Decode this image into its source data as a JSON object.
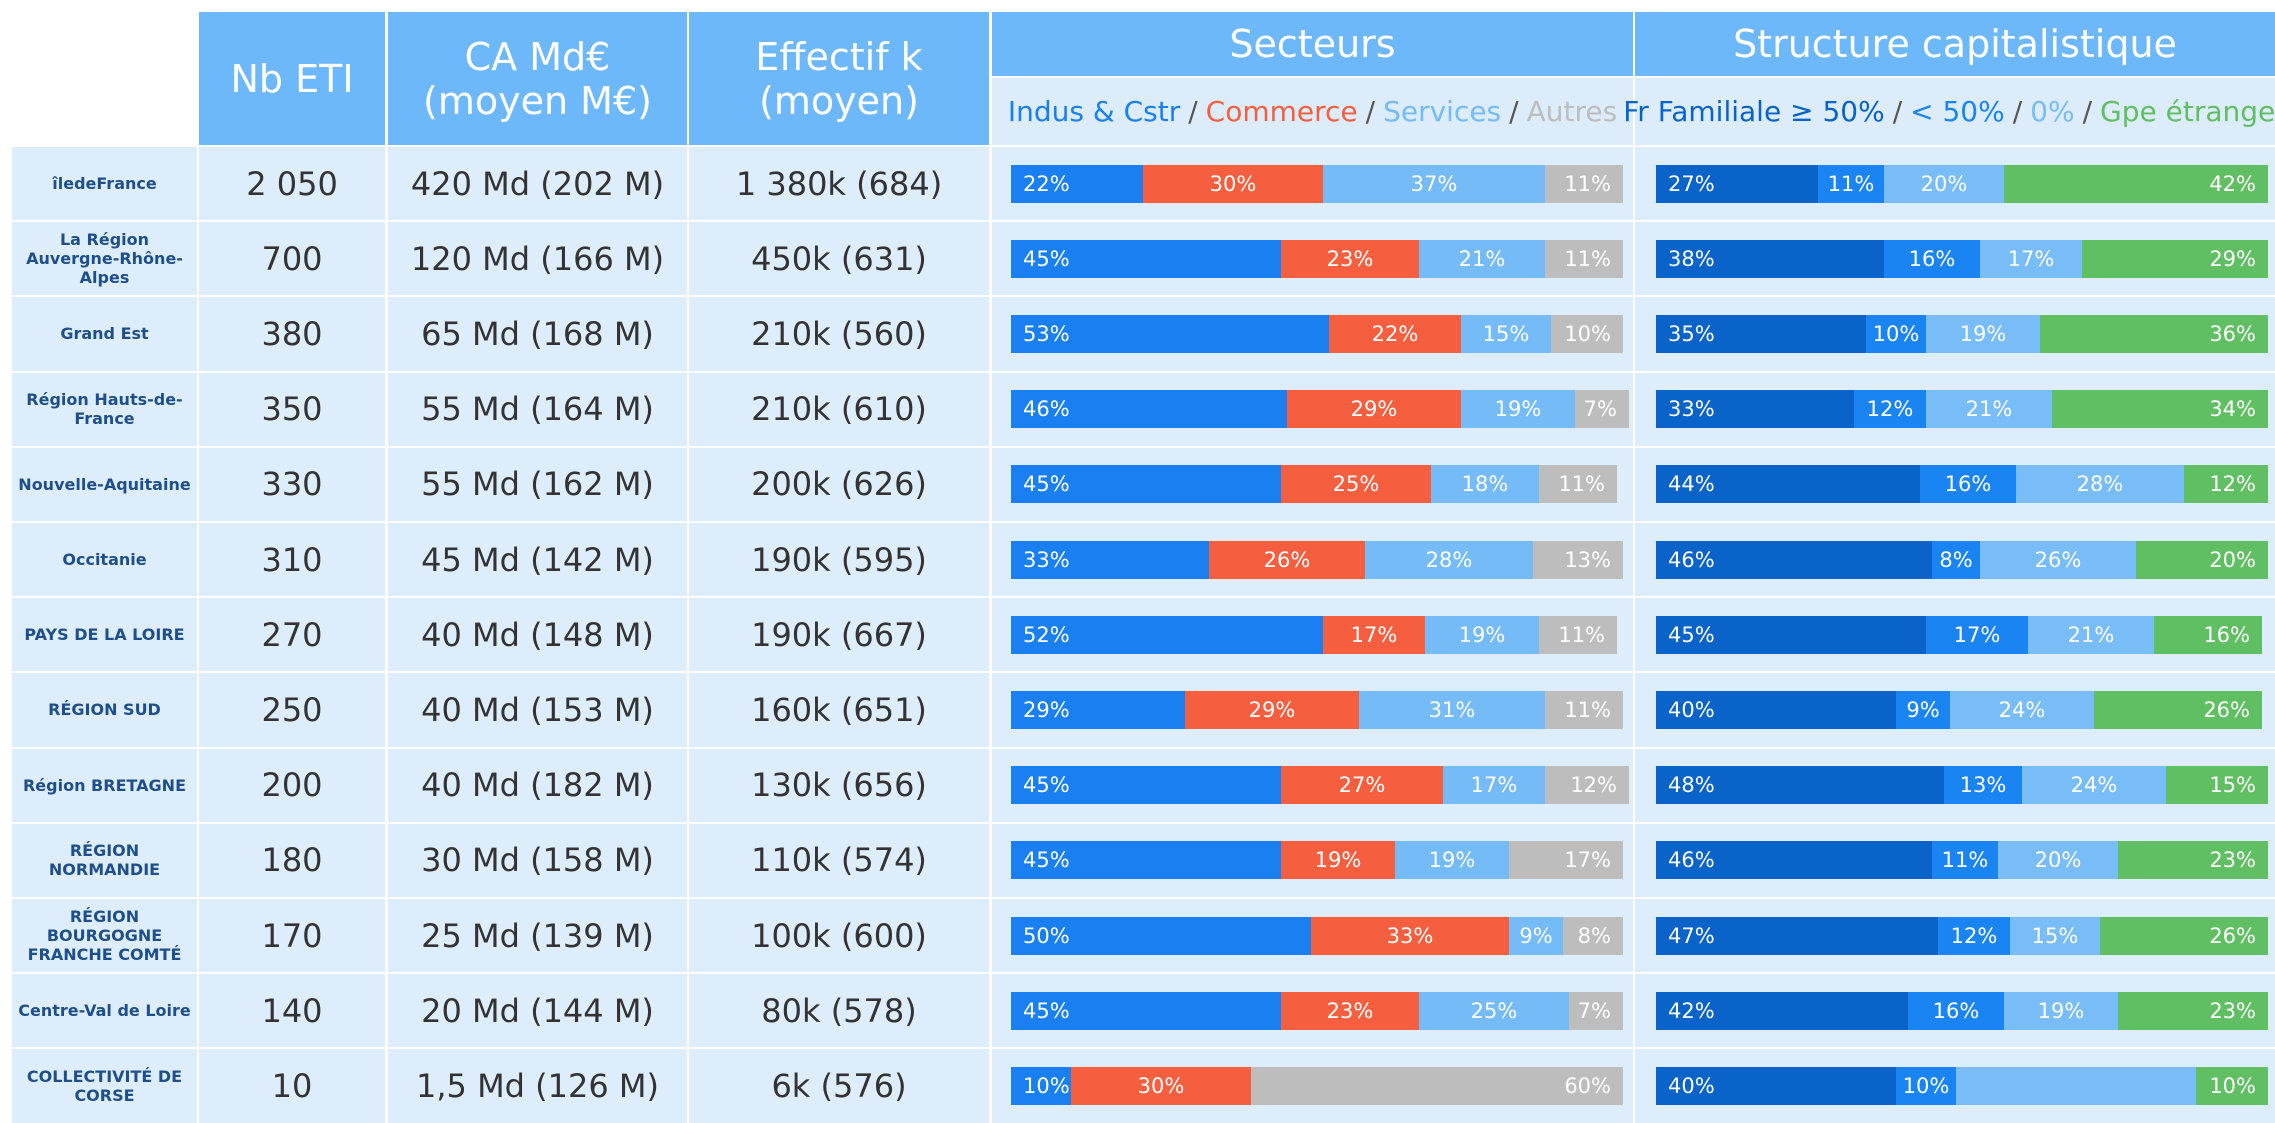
{
  "header": {
    "nb": "Nb ETI",
    "ca": [
      "CA Md€",
      "(moyen M€)"
    ],
    "eff": [
      "Effectif k",
      "(moyen)"
    ],
    "secteurs": "Secteurs",
    "structure": "Structure capitalistique",
    "separator": "/",
    "secteurs_legend": [
      {
        "name": "Indus & Cstr",
        "color": "#1a7ff0"
      },
      {
        "name": "Commerce",
        "color": "#f55f3f"
      },
      {
        "name": "Services",
        "color": "#74bbf7"
      },
      {
        "name": "Autres",
        "color": "#bdbdbd"
      }
    ],
    "structure_legend": [
      {
        "name": "Fr Familiale ≥ 50%",
        "color": "#0a63c8"
      },
      {
        "name": "< 50%",
        "color": "#1a85f2"
      },
      {
        "name": "0%",
        "color": "#78bdf8"
      },
      {
        "name": "Gpe étranger",
        "color": "#5fbf62"
      }
    ]
  },
  "rows": [
    {
      "region": "îledeFrance",
      "nb": "2 050",
      "ca": "420 Md (202 M)",
      "eff": "1 380k (684)",
      "secteurs": [
        22,
        30,
        37,
        11
      ],
      "secteurs_labels": [
        "22%",
        "30%",
        "37%",
        "11%"
      ],
      "structure": [
        27,
        11,
        20,
        42
      ],
      "structure_labels": [
        "27%",
        "11%",
        "20%",
        "42%"
      ]
    },
    {
      "region": "La Région Auvergne-Rhône-Alpes",
      "nb": "700",
      "ca": "120 Md (166 M)",
      "eff": "450k (631)",
      "secteurs": [
        45,
        23,
        21,
        11
      ],
      "secteurs_labels": [
        "45%",
        "23%",
        "21%",
        "11%"
      ],
      "structure": [
        38,
        16,
        17,
        29
      ],
      "structure_labels": [
        "38%",
        "16%",
        "17%",
        "29%"
      ]
    },
    {
      "region": "Grand Est",
      "nb": "380",
      "ca": "65 Md (168 M)",
      "eff": "210k (560)",
      "secteurs": [
        53,
        22,
        15,
        10
      ],
      "secteurs_labels": [
        "53%",
        "22%",
        "15%",
        "10%"
      ],
      "structure": [
        35,
        10,
        19,
        36
      ],
      "structure_labels": [
        "35%",
        "10%",
        "19%",
        "36%"
      ]
    },
    {
      "region": "Région Hauts-de-France",
      "nb": "350",
      "ca": "55 Md (164 M)",
      "eff": "210k (610)",
      "secteurs": [
        46,
        29,
        19,
        7
      ],
      "secteurs_labels": [
        "46%",
        "29%",
        "19%",
        "7%"
      ],
      "structure": [
        33,
        12,
        21,
        34
      ],
      "structure_labels": [
        "33%",
        "12%",
        "21%",
        "34%"
      ]
    },
    {
      "region": "Nouvelle-Aquitaine",
      "nb": "330",
      "ca": "55 Md (162 M)",
      "eff": "200k (626)",
      "secteurs": [
        45,
        25,
        18,
        11
      ],
      "secteurs_labels": [
        "45%",
        "25%",
        "18%",
        "11%"
      ],
      "structure": [
        44,
        16,
        28,
        12
      ],
      "structure_labels": [
        "44%",
        "16%",
        "28%",
        "12%"
      ]
    },
    {
      "region": "Occitanie",
      "nb": "310",
      "ca": "45 Md (142 M)",
      "eff": "190k (595)",
      "secteurs": [
        33,
        26,
        28,
        13
      ],
      "secteurs_labels": [
        "33%",
        "26%",
        "28%",
        "13%"
      ],
      "structure": [
        46,
        8,
        26,
        20
      ],
      "structure_labels": [
        "46%",
        "8%",
        "26%",
        "20%"
      ]
    },
    {
      "region": "PAYS DE LA LOIRE",
      "nb": "270",
      "ca": "40 Md (148 M)",
      "eff": "190k (667)",
      "secteurs": [
        52,
        17,
        19,
        11
      ],
      "secteurs_labels": [
        "52%",
        "17%",
        "19%",
        "11%"
      ],
      "structure": [
        45,
        17,
        21,
        16
      ],
      "structure_labels": [
        "45%",
        "17%",
        "21%",
        "16%"
      ]
    },
    {
      "region": "RÉGION SUD",
      "nb": "250",
      "ca": "40 Md (153 M)",
      "eff": "160k (651)",
      "secteurs": [
        29,
        29,
        31,
        11
      ],
      "secteurs_labels": [
        "29%",
        "29%",
        "31%",
        "11%"
      ],
      "structure": [
        40,
        9,
        24,
        26
      ],
      "structure_labels": [
        "40%",
        "9%",
        "24%",
        "26%"
      ]
    },
    {
      "region": "Région BRETAGNE",
      "nb": "200",
      "ca": "40 Md (182 M)",
      "eff": "130k (656)",
      "secteurs": [
        45,
        27,
        17,
        12
      ],
      "secteurs_labels": [
        "45%",
        "27%",
        "17%",
        "12%"
      ],
      "structure": [
        48,
        13,
        24,
        15
      ],
      "structure_labels": [
        "48%",
        "13%",
        "24%",
        "15%"
      ]
    },
    {
      "region": "RÉGION NORMANDIE",
      "nb": "180",
      "ca": "30 Md (158 M)",
      "eff": "110k (574)",
      "secteurs": [
        45,
        19,
        19,
        17
      ],
      "secteurs_labels": [
        "45%",
        "19%",
        "19%",
        "17%"
      ],
      "structure": [
        46,
        11,
        20,
        23
      ],
      "structure_labels": [
        "46%",
        "11%",
        "20%",
        "23%"
      ]
    },
    {
      "region": "RÉGION BOURGOGNE FRANCHE COMTÉ",
      "nb": "170",
      "ca": "25 Md (139 M)",
      "eff": "100k (600)",
      "secteurs": [
        50,
        33,
        9,
        8
      ],
      "secteurs_labels": [
        "50%",
        "33%",
        "9%",
        "8%"
      ],
      "structure": [
        47,
        12,
        15,
        26
      ],
      "structure_labels": [
        "47%",
        "12%",
        "15%",
        "26%"
      ]
    },
    {
      "region": "Centre-Val de Loire",
      "nb": "140",
      "ca": "20 Md (144 M)",
      "eff": "80k (578)",
      "secteurs": [
        45,
        23,
        25,
        7
      ],
      "secteurs_labels": [
        "45%",
        "23%",
        "25%",
        "7%"
      ],
      "structure": [
        42,
        16,
        19,
        23
      ],
      "structure_labels": [
        "42%",
        "16%",
        "19%",
        "23%"
      ]
    },
    {
      "region": "COLLECTIVITÉ DE CORSE",
      "nb": "10",
      "ca": "1,5 Md (126 M)",
      "eff": "6k (576)",
      "secteurs": [
        10,
        30,
        0,
        60
      ],
      "secteurs_labels": [
        "10%",
        "30%",
        null,
        "60%"
      ],
      "structure": [
        40,
        10,
        40,
        10
      ],
      "structure_labels": [
        "40%",
        "10%",
        null,
        "10%"
      ]
    }
  ]
}
